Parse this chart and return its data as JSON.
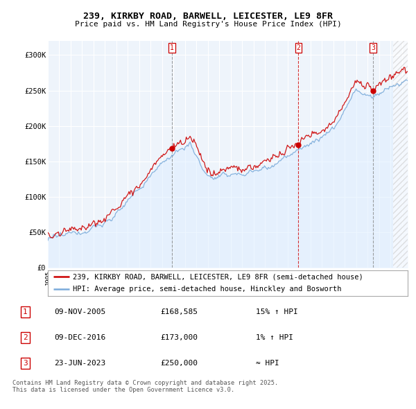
{
  "title_line1": "239, KIRKBY ROAD, BARWELL, LEICESTER, LE9 8FR",
  "title_line2": "Price paid vs. HM Land Registry's House Price Index (HPI)",
  "ylim": [
    0,
    320000
  ],
  "yticks": [
    0,
    50000,
    100000,
    150000,
    200000,
    250000,
    300000
  ],
  "ytick_labels": [
    "£0",
    "£50K",
    "£100K",
    "£150K",
    "£200K",
    "£250K",
    "£300K"
  ],
  "legend_line1": "239, KIRKBY ROAD, BARWELL, LEICESTER, LE9 8FR (semi-detached house)",
  "legend_line2": "HPI: Average price, semi-detached house, Hinckley and Bosworth",
  "red_line_color": "#cc0000",
  "blue_line_color": "#7aabdb",
  "blue_fill_color": "#ddeeff",
  "transaction1_date": "09-NOV-2005",
  "transaction1_price": "£168,585",
  "transaction1_hpi": "15% ↑ HPI",
  "transaction1_x": 2005.86,
  "transaction2_date": "09-DEC-2016",
  "transaction2_price": "£173,000",
  "transaction2_hpi": "1% ↑ HPI",
  "transaction2_x": 2016.94,
  "transaction3_date": "23-JUN-2023",
  "transaction3_price": "£250,000",
  "transaction3_hpi": "≈ HPI",
  "transaction3_x": 2023.48,
  "footnote": "Contains HM Land Registry data © Crown copyright and database right 2025.\nThis data is licensed under the Open Government Licence v3.0.",
  "background_color": "#eef4fb",
  "grid_color": "#ffffff",
  "xmin": 1995.0,
  "xmax": 2026.5
}
